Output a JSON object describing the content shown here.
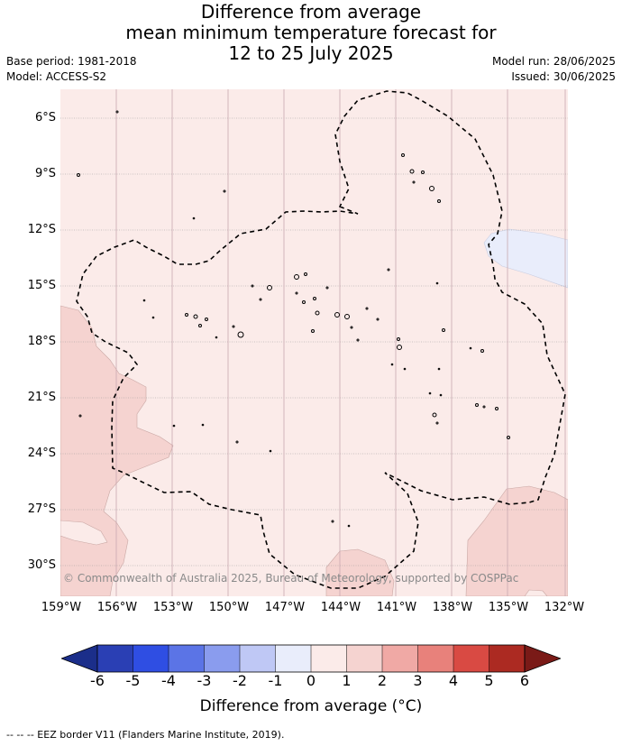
{
  "title_lines": [
    "Difference from average",
    "mean minimum temperature forecast for",
    "12 to 25 July 2025"
  ],
  "base_period": "Base period: 1981-2018",
  "model": "Model: ACCESS-S2",
  "model_run": "Model run: 28/06/2025",
  "issued": "Issued: 30/06/2025",
  "lat_labels": [
    "6°S",
    "9°S",
    "12°S",
    "15°S",
    "18°S",
    "21°S",
    "24°S",
    "27°S",
    "30°S"
  ],
  "lon_labels": [
    "159°W",
    "156°W",
    "153°W",
    "150°W",
    "147°W",
    "144°W",
    "141°W",
    "138°W",
    "135°W",
    "132°W"
  ],
  "copyright": "© Commonwealth of Australia 2025, Bureau of Meteorology, supported by COSPPac",
  "colorbar": {
    "title": "Difference from average (°C)",
    "tick_labels": [
      "-6",
      "-5",
      "-4",
      "-3",
      "-2",
      "-1",
      "0",
      "1",
      "2",
      "3",
      "4",
      "5",
      "6"
    ],
    "colors": [
      "#1b2e8a",
      "#2a3fb4",
      "#2f4ee3",
      "#5b74e6",
      "#8a9cee",
      "#bfc8f5",
      "#e9edfb",
      "#fbebe9",
      "#f5d3d0",
      "#f0a9a5",
      "#e8817b",
      "#d94a43",
      "#ac2a22",
      "#7a1a17"
    ]
  },
  "map_colors": {
    "anomaly_0_1": "#fbebe9",
    "anomaly_1_2": "#f5d3d0",
    "anomaly_neg1_0": "#e9edfb"
  },
  "source_note": "--  --  -- EEZ border V11 (Flanders Marine Institute, 2019)."
}
